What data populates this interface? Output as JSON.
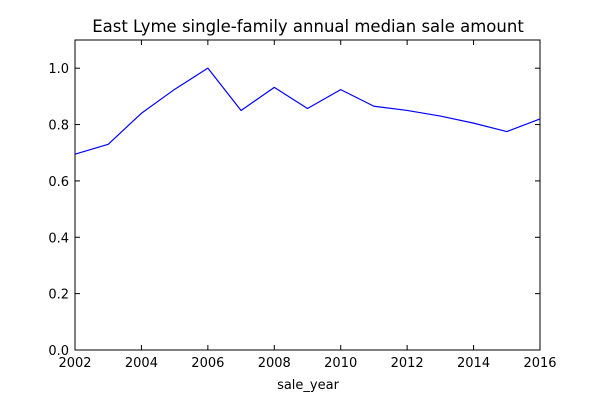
{
  "chart_data": {
    "type": "line",
    "title": "East Lyme single-family annual median sale amount",
    "xlabel": "sale_year",
    "ylabel": "",
    "xlim": [
      2002,
      2016
    ],
    "ylim": [
      0.0,
      1.1
    ],
    "xticks": [
      2002,
      2004,
      2006,
      2008,
      2010,
      2012,
      2014,
      2016
    ],
    "xtick_labels": [
      "2002",
      "2004",
      "2006",
      "2008",
      "2010",
      "2012",
      "2014",
      "2016"
    ],
    "yticks": [
      0.0,
      0.2,
      0.4,
      0.6,
      0.8,
      1.0
    ],
    "ytick_labels": [
      "0.0",
      "0.2",
      "0.4",
      "0.6",
      "0.8",
      "1.0"
    ],
    "grid": false,
    "legend": "none",
    "series": [
      {
        "color": "#0000ff",
        "x": [
          2002,
          2003,
          2004,
          2005,
          2006,
          2007,
          2008,
          2009,
          2010,
          2011,
          2012,
          2013,
          2014,
          2015,
          2016
        ],
        "y": [
          0.695,
          0.73,
          0.84,
          0.925,
          1.0,
          0.85,
          0.932,
          0.857,
          0.924,
          0.865,
          0.85,
          0.83,
          0.805,
          0.775,
          0.82
        ]
      }
    ]
  }
}
